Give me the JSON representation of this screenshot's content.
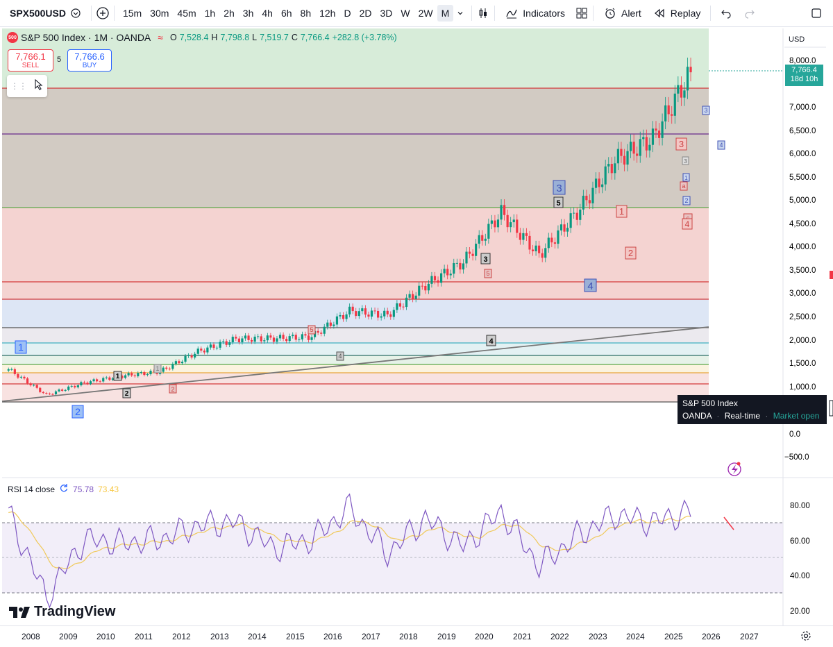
{
  "toolbar": {
    "symbol": "SPX500USD",
    "intervals": [
      "15m",
      "30m",
      "45m",
      "1h",
      "2h",
      "3h",
      "4h",
      "6h",
      "8h",
      "12h",
      "D",
      "2D",
      "3D",
      "W",
      "2W",
      "M"
    ],
    "active_interval": "M",
    "indicators_label": "Indicators",
    "alert_label": "Alert",
    "replay_label": "Replay"
  },
  "legend": {
    "logo_text": "500",
    "title": "S&P 500 Index · 1M · OANDA",
    "approx": "≈",
    "o_label": "O",
    "o_value": "7,528.4",
    "h_label": "H",
    "h_value": "7,798.8",
    "l_label": "L",
    "l_value": "7,519.7",
    "c_label": "C",
    "c_value": "7,766.4",
    "change": "+282.8 (+3.78%)"
  },
  "trade": {
    "sell_price": "7,766.1",
    "sell_label": "SELL",
    "spread": "5",
    "buy_price": "7,766.6",
    "buy_label": "BUY"
  },
  "price_axis": {
    "currency": "USD",
    "ticks": [
      "8,000.0",
      "7,000.0",
      "6,500.0",
      "6,000.0",
      "5,500.0",
      "5,000.0",
      "4,500.0",
      "4,000.0",
      "3,500.0",
      "3,000.0",
      "2,500.0",
      "2,000.0",
      "1,500.0",
      "1,000.0",
      "0.0",
      "−500.0"
    ],
    "last_price": "7,766.4",
    "countdown": "18d 10h"
  },
  "tooltip": {
    "name": "S&P 500 Index",
    "source": "OANDA",
    "dot": "·",
    "mode": "Real-time",
    "status": "Market open"
  },
  "wave_labels": {
    "blue_1": "1",
    "blue_2": "2",
    "b1": "1",
    "b2": "2",
    "p1": "1",
    "p2": "2",
    "g5": "5",
    "g4": "4",
    "b3a": "3",
    "p5": "5",
    "b4": "4",
    "big3": "3",
    "b5": "5",
    "big4": "4",
    "r1": "1",
    "r2": "2",
    "r3": "3",
    "s3": "3",
    "s4": "4",
    "c3": "3",
    "c1": "1",
    "ca": "a",
    "c2": "2",
    "cc": "c",
    "c4": "4"
  },
  "rsi": {
    "label": "RSI 14 close",
    "value": "75.78",
    "ma_value": "73.43",
    "ticks": [
      "80.00",
      "60.00",
      "40.00",
      "20.00"
    ]
  },
  "time_axis": [
    "2008",
    "2009",
    "2010",
    "2011",
    "2012",
    "2013",
    "2014",
    "2015",
    "2016",
    "2017",
    "2018",
    "2019",
    "2020",
    "2021",
    "2022",
    "2023",
    "2024",
    "2025",
    "2026",
    "2027"
  ],
  "brand": "TradingView",
  "colors": {
    "up": "#089981",
    "down": "#f23645",
    "rsi_line": "#7e57c2",
    "rsi_ma": "#f7c948",
    "zone_green": "#d7ecd9",
    "zone_gray": "#cfc8c0",
    "zone_red": "#f3d2d0"
  },
  "chart_data": {
    "type": "candlestick",
    "title": "S&P 500 Index · 1M · OANDA",
    "x": [
      "2008",
      "2009",
      "2010",
      "2011",
      "2012",
      "2013",
      "2014",
      "2015",
      "2016",
      "2017",
      "2018",
      "2019",
      "2020",
      "2021",
      "2022",
      "2023",
      "2024",
      "2025",
      "2026"
    ],
    "close_approx": [
      1400,
      850,
      1110,
      1260,
      1350,
      1780,
      2050,
      2060,
      2100,
      2650,
      2560,
      3200,
      3700,
      4760,
      3850,
      4760,
      5880,
      6350,
      7766
    ],
    "ylim": [
      -500,
      8000
    ],
    "rsi_approx": [
      75,
      27,
      60,
      58,
      60,
      68,
      70,
      55,
      60,
      78,
      52,
      72,
      56,
      76,
      45,
      62,
      74,
      70,
      75.78
    ],
    "rsi_ylim": [
      15,
      90
    ]
  }
}
